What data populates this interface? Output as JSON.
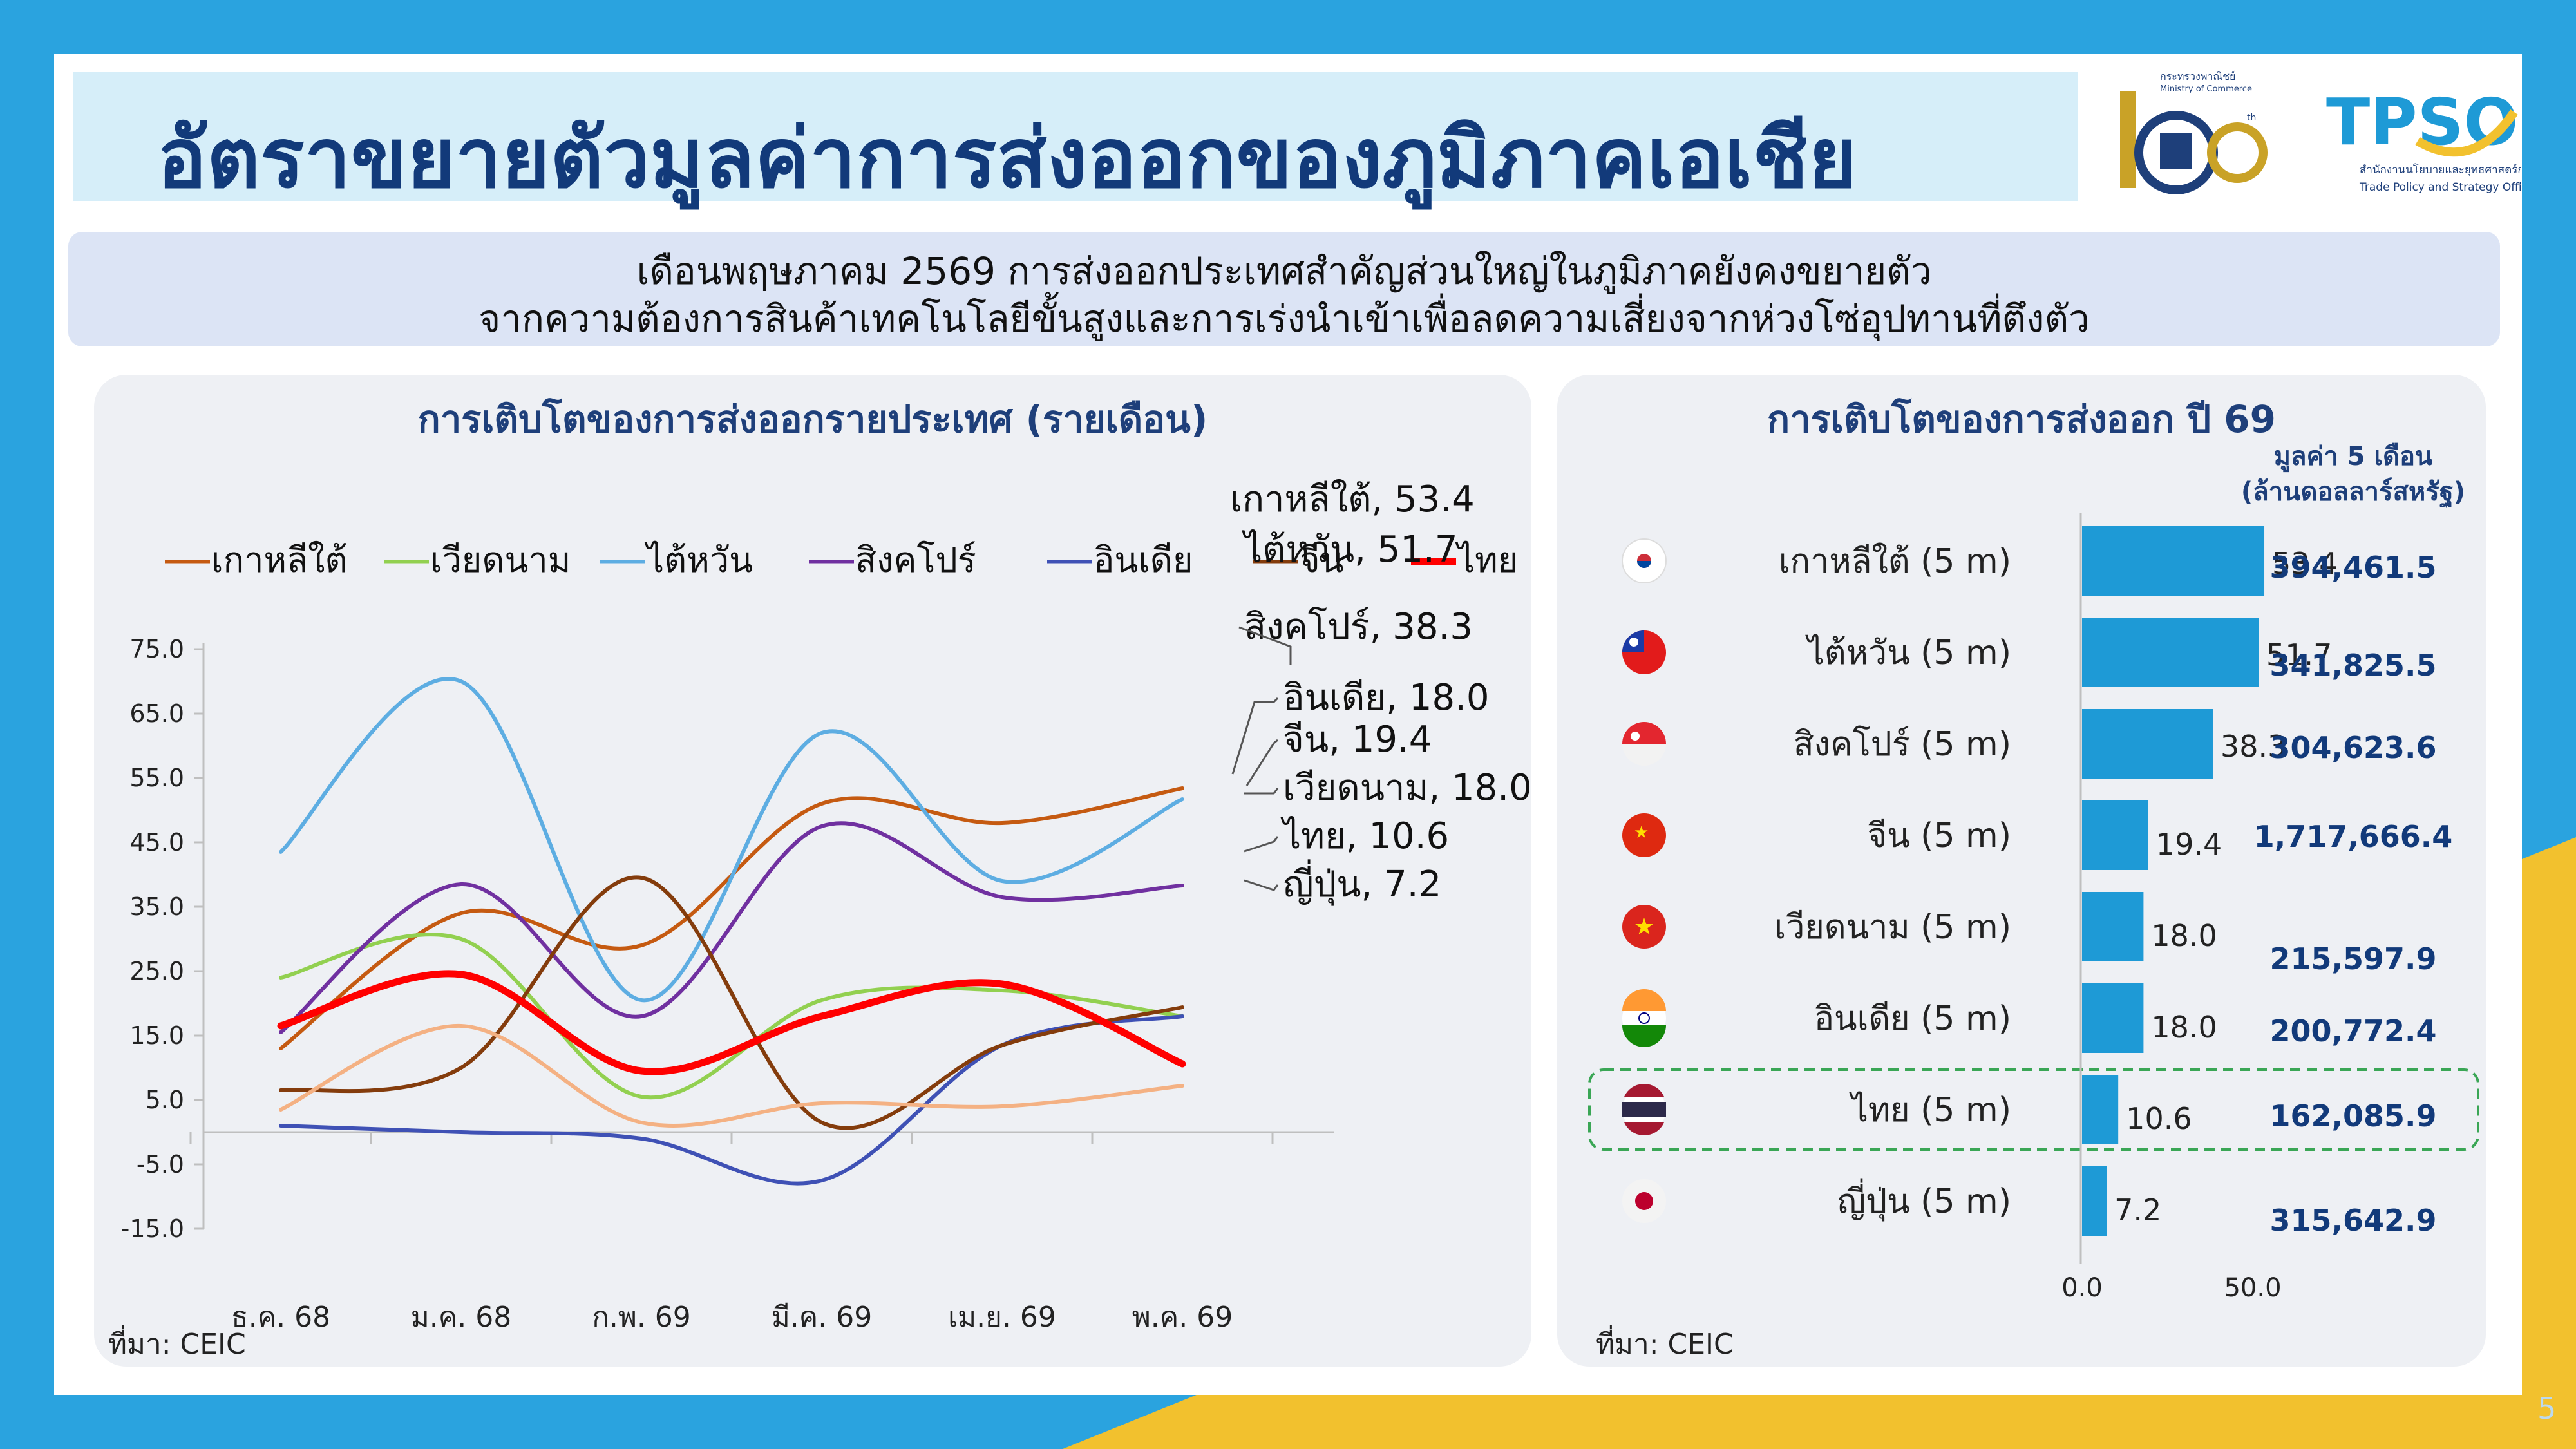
{
  "header": {
    "title": "อัตราขยายตัวมูลค่าการส่งออกของภูมิภาคเอเชีย",
    "logo_moc_text_1": "กระทรวงพาณิชย์",
    "logo_moc_text_2": "Ministry of Commerce",
    "logo_moc_number": "105",
    "logo_moc_suffix": "th",
    "logo_tpso_name": "TPSO",
    "logo_tpso_text_1": "สำนักงานนโยบายและยุทธศาสตร์การค้า",
    "logo_tpso_text_2": "Trade Policy and Strategy Office"
  },
  "subtitle": {
    "line1": "เดือนพฤษภาคม 2569 การส่งออกประเทศสำคัญส่วนใหญ่ในภูมิภาคยังคงขยายตัว",
    "line2": "จากความต้องการสินค้าเทคโนโลยีขั้นสูงและการเร่งนำเข้าเพื่อลดความเสี่ยงจากห่วงโซ่อุปทานที่ตึงตัว"
  },
  "left_panel": {
    "title": "การเติบโตของการส่งออกรายประเทศ (รายเดือน)",
    "source": "ที่มา: CEIC"
  },
  "right_panel": {
    "title": "การเติบโตของการส่งออก ปี 69",
    "value_header_1": "มูลค่า 5 เดือน",
    "value_header_2": "(ล้านดอลลาร์สหรัฐ)",
    "source": "ที่มา: CEIC"
  },
  "page_number": "5",
  "colors": {
    "background_blue": "#2aa3df",
    "corner_yellow": "#f2c12e",
    "title_text": "#123a7a",
    "bar": "#1e9ad6",
    "highlight_border": "#3aa655"
  },
  "chart_data": [
    {
      "type": "line",
      "categories": [
        "ธ.ค. 68",
        "ม.ค. 68",
        "ก.พ. 69",
        "มี.ค. 69",
        "เม.ย. 69",
        "พ.ค. 69"
      ],
      "ylim": [
        -15,
        75
      ],
      "yticks": [
        "75.0",
        "65.0",
        "55.0",
        "45.0",
        "35.0",
        "25.0",
        "15.0",
        "5.0",
        "-5.0",
        "-15.0"
      ],
      "grid": false,
      "legend_position": "top",
      "series": [
        {
          "name": "เกาหลีใต้",
          "color": "#c55a11",
          "values": [
            13.0,
            34.0,
            29.0,
            51.0,
            48.0,
            53.4
          ],
          "end_label": "เกาหลีใต้, 53.4"
        },
        {
          "name": "เวียดนาม",
          "color": "#92d050",
          "values": [
            24.0,
            30.0,
            5.5,
            20.5,
            22.0,
            18.0
          ],
          "end_label": "เวียดนาม, 18.0"
        },
        {
          "name": "ไต้หวัน",
          "color": "#5dade2",
          "values": [
            43.5,
            70.0,
            20.5,
            62.0,
            39.0,
            51.7
          ],
          "end_label": "ไต้หวัน, 51.7"
        },
        {
          "name": "สิงคโปร์",
          "color": "#7030a0",
          "values": [
            15.5,
            38.5,
            18.0,
            47.5,
            36.5,
            38.3
          ],
          "end_label": "สิงคโปร์, 38.3"
        },
        {
          "name": "อินเดีย",
          "color": "#3f51b5",
          "values": [
            1.0,
            0.0,
            -1.0,
            -7.5,
            13.5,
            18.0
          ],
          "end_label": "อินเดีย, 18.0"
        },
        {
          "name": "จีน",
          "color": "#843c0c",
          "values": [
            6.5,
            10.0,
            39.5,
            1.5,
            13.5,
            19.4
          ],
          "end_label": "จีน, 19.4"
        },
        {
          "name": "ไทย",
          "color": "#ff0000",
          "values": [
            16.5,
            24.5,
            9.5,
            18.0,
            23.0,
            10.6
          ],
          "end_label": "ไทย, 10.6"
        },
        {
          "name": "ญี่ปุ่น",
          "color": "#f4b183",
          "values": [
            3.5,
            16.5,
            1.5,
            4.5,
            4.0,
            7.2
          ],
          "end_label": "ญี่ปุ่น, 7.2"
        }
      ]
    },
    {
      "type": "bar",
      "orientation": "horizontal",
      "categories": [
        "เกาหลีใต้ (5 m)",
        "ไต้หวัน (5 m)",
        "สิงคโปร์ (5 m)",
        "จีน (5 m)",
        "เวียดนาม (5 m)",
        "อินเดีย (5 m)",
        "ไทย (5 m)",
        "ญี่ปุ่น (5 m)"
      ],
      "values": [
        53.4,
        51.7,
        38.3,
        19.4,
        18.0,
        18.0,
        10.6,
        7.2
      ],
      "value_labels": [
        "53.4",
        "51.7",
        "38.3",
        "19.4",
        "18.0",
        "18.0",
        "10.6",
        "7.2"
      ],
      "flags": [
        "korea-flag-icon",
        "taiwan-flag-icon",
        "singapore-flag-icon",
        "china-flag-icon",
        "vietnam-flag-icon",
        "india-flag-icon",
        "thailand-flag-icon",
        "japan-flag-icon"
      ],
      "five_month_values": [
        "394,461.5",
        "341,825.5",
        "304,623.6",
        "1,717,666.4",
        "215,597.9",
        "200,772.4",
        "162,085.9",
        "315,642.9"
      ],
      "highlight": "ไทย (5 m)",
      "xticks": [
        "0.0",
        "50.0"
      ],
      "xlim": [
        0,
        60
      ]
    }
  ]
}
